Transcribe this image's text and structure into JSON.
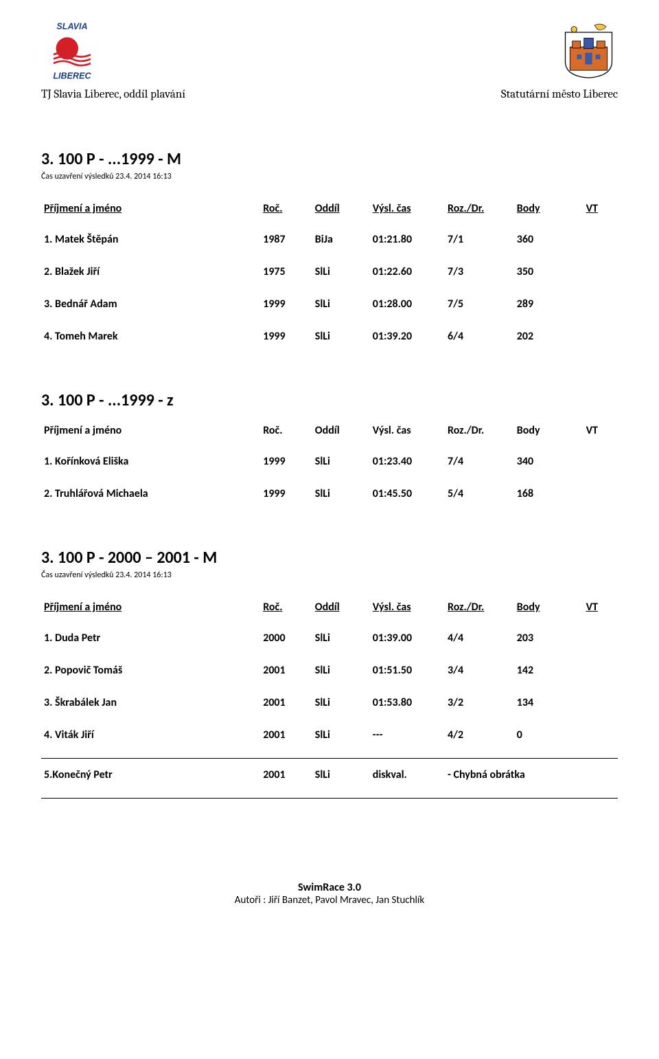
{
  "header": {
    "left_org": "TJ Slavia Liberec, oddíl plavání",
    "right_org": "Statutární město Liberec",
    "logo_left": {
      "top_text": "SLAVIA",
      "bottom_text": "LIBEREC",
      "icon_color": "#d32028",
      "text_color": "#1a3e8a"
    },
    "logo_right": {
      "wall_color": "#d66b2a",
      "accent_blue": "#3a5aa8",
      "accent_yellow": "#f2c542"
    }
  },
  "table_headers": {
    "name": "Příjmení a jméno",
    "year": "Roč.",
    "club": "Oddíl",
    "time": "Výsl. čas",
    "roz": "Roz./Dr.",
    "body": "Body",
    "vt": "VT"
  },
  "sections": [
    {
      "title": "3. 100 P - ...1999 - M",
      "subtitle": "Čas uzavření výsledků 23.4. 2014 16:13",
      "header_underline": true,
      "rows": [
        {
          "place": "1.",
          "name": "Matek Štěpán",
          "year": "1987",
          "club": "BiJa",
          "time": "01:21.80",
          "roz": "7/1",
          "body": "360",
          "vt": ""
        },
        {
          "place": "2.",
          "name": "Blažek Jiří",
          "year": "1975",
          "club": "SlLi",
          "time": "01:22.60",
          "roz": "7/3",
          "body": "350",
          "vt": ""
        },
        {
          "place": "3.",
          "name": "Bednář Adam",
          "year": "1999",
          "club": "SlLi",
          "time": "01:28.00",
          "roz": "7/5",
          "body": "289",
          "vt": ""
        },
        {
          "place": "4.",
          "name": "Tomeh Marek",
          "year": "1999",
          "club": "SlLi",
          "time": "01:39.20",
          "roz": "6/4",
          "body": "202",
          "vt": ""
        }
      ]
    },
    {
      "title": "3. 100 P - ...1999 - z",
      "subtitle": "",
      "header_underline": false,
      "rows": [
        {
          "place": "1.",
          "name": "Kořínková Eliška",
          "year": "1999",
          "club": "SlLi",
          "time": "01:23.40",
          "roz": "7/4",
          "body": "340",
          "vt": ""
        },
        {
          "place": "2.",
          "name": "Truhlářová Michaela",
          "year": "1999",
          "club": "SlLi",
          "time": "01:45.50",
          "roz": "5/4",
          "body": "168",
          "vt": ""
        }
      ]
    },
    {
      "title": "3. 100 P - 2000 – 2001 - M",
      "subtitle": "Čas uzavření výsledků 23.4. 2014 16:13",
      "header_underline": true,
      "rows": [
        {
          "place": "1.",
          "name": "Duda Petr",
          "year": "2000",
          "club": "SlLi",
          "time": "01:39.00",
          "roz": "4/4",
          "body": "203",
          "vt": ""
        },
        {
          "place": "2.",
          "name": "Popovič Tomáš",
          "year": "2001",
          "club": "SlLi",
          "time": "01:51.50",
          "roz": "3/4",
          "body": "142",
          "vt": ""
        },
        {
          "place": "3.",
          "name": "Škrabálek Jan",
          "year": "2001",
          "club": "SlLi",
          "time": "01:53.80",
          "roz": "3/2",
          "body": "134",
          "vt": ""
        },
        {
          "place": "4.",
          "name": "Viták Jiří",
          "year": "2001",
          "club": "SlLi",
          "time": "---",
          "roz": "4/2",
          "body": "0",
          "vt": ""
        }
      ],
      "dq_rows": [
        {
          "place": "5.",
          "name": "Konečný Petr",
          "year": "2001",
          "club": "SlLi",
          "time": "diskval.",
          "note": "- Chybná obrátka"
        }
      ]
    }
  ],
  "footer": {
    "title": "SwimRace 3.0",
    "authors": "Autoři : Jiří Banzet, Pavol Mravec, Jan Stuchlík"
  }
}
